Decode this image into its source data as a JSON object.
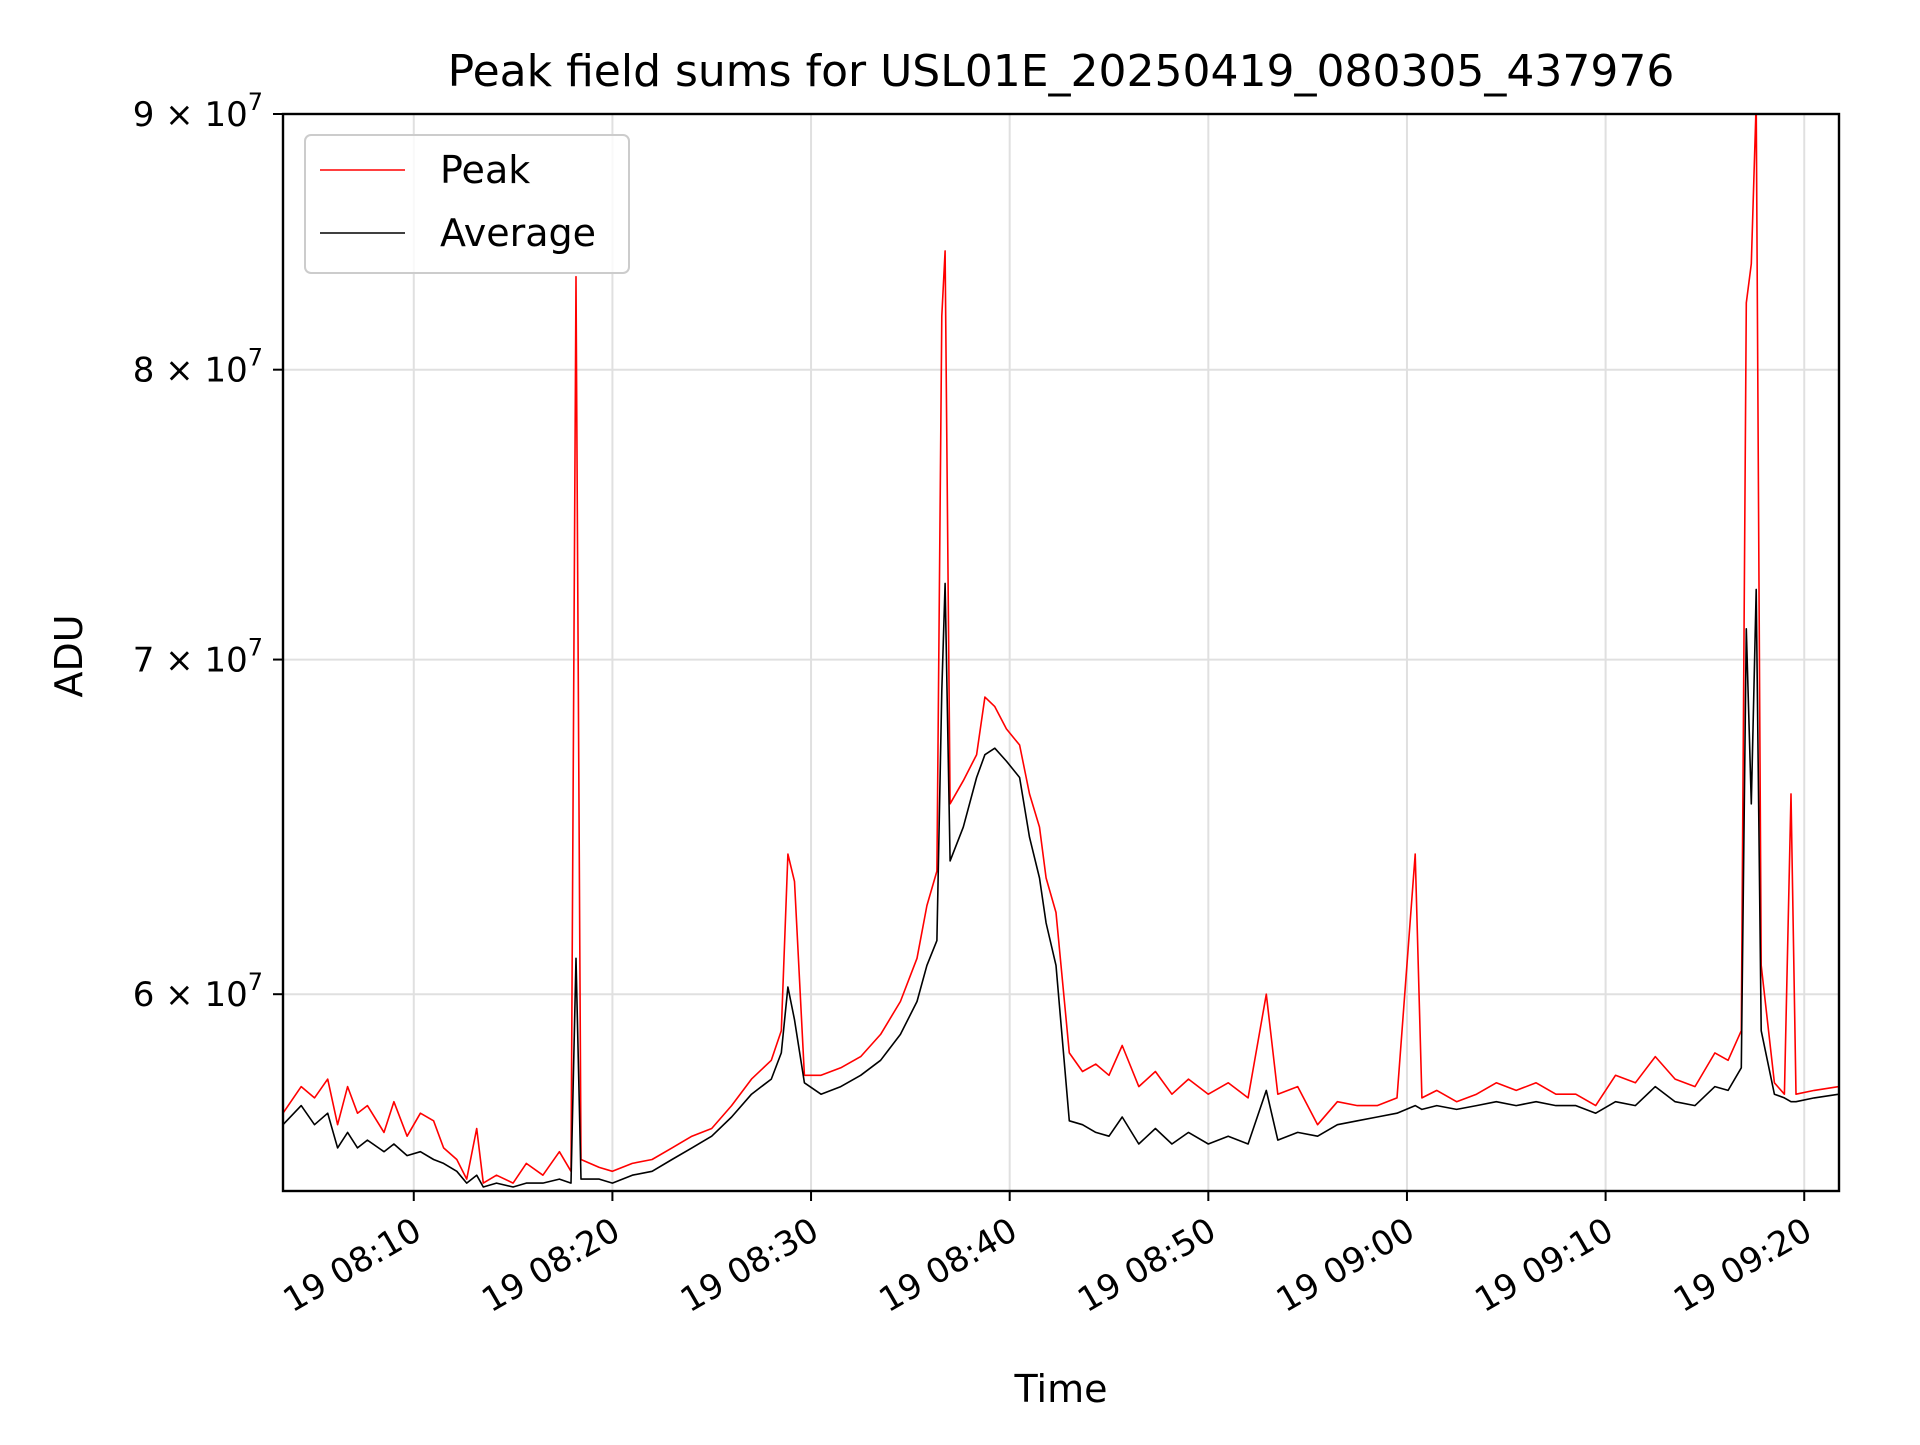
{
  "chart_data": {
    "type": "line",
    "title": "Peak field sums for USL01E_20250419_080305_437976",
    "xlabel": "Time",
    "ylabel": "ADU",
    "x_axis_type": "time",
    "y_scale": "log",
    "xlim": [
      "2025-04-19T08:03:25",
      "2025-04-19T09:21:45"
    ],
    "ylim": [
      54800000,
      90000000
    ],
    "x_ticks": [
      {
        "value": "2025-04-19T08:10:00",
        "label": "19 08:10"
      },
      {
        "value": "2025-04-19T08:20:00",
        "label": "19 08:20"
      },
      {
        "value": "2025-04-19T08:30:00",
        "label": "19 08:30"
      },
      {
        "value": "2025-04-19T08:40:00",
        "label": "19 08:40"
      },
      {
        "value": "2025-04-19T08:50:00",
        "label": "19 08:50"
      },
      {
        "value": "2025-04-19T09:00:00",
        "label": "19 09:00"
      },
      {
        "value": "2025-04-19T09:10:00",
        "label": "19 09:10"
      },
      {
        "value": "2025-04-19T09:20:00",
        "label": "19 09:20"
      }
    ],
    "y_ticks": [
      {
        "value": 60000000,
        "label": "6 × 10",
        "exp": "7"
      },
      {
        "value": 70000000,
        "label": "7 × 10",
        "exp": "7"
      },
      {
        "value": 80000000,
        "label": "8 × 10",
        "exp": "7"
      },
      {
        "value": 90000000,
        "label": "9 × 10",
        "exp": "7"
      }
    ],
    "grid": true,
    "legend_position": "top-left",
    "series": [
      {
        "name": "Peak",
        "color": "#ff0000",
        "points": [
          [
            "2025-04-19T08:03:25",
            56800000
          ],
          [
            "2025-04-19T08:04:20",
            57500000
          ],
          [
            "2025-04-19T08:05:00",
            57200000
          ],
          [
            "2025-04-19T08:05:40",
            57700000
          ],
          [
            "2025-04-19T08:06:10",
            56500000
          ],
          [
            "2025-04-19T08:06:40",
            57500000
          ],
          [
            "2025-04-19T08:07:10",
            56800000
          ],
          [
            "2025-04-19T08:07:40",
            57000000
          ],
          [
            "2025-04-19T08:08:30",
            56300000
          ],
          [
            "2025-04-19T08:09:00",
            57100000
          ],
          [
            "2025-04-19T08:09:40",
            56200000
          ],
          [
            "2025-04-19T08:10:20",
            56800000
          ],
          [
            "2025-04-19T08:11:00",
            56600000
          ],
          [
            "2025-04-19T08:11:30",
            55900000
          ],
          [
            "2025-04-19T08:12:10",
            55600000
          ],
          [
            "2025-04-19T08:12:40",
            55100000
          ],
          [
            "2025-04-19T08:13:10",
            56400000
          ],
          [
            "2025-04-19T08:13:30",
            55000000
          ],
          [
            "2025-04-19T08:14:10",
            55200000
          ],
          [
            "2025-04-19T08:15:00",
            55000000
          ],
          [
            "2025-04-19T08:15:40",
            55500000
          ],
          [
            "2025-04-19T08:16:30",
            55200000
          ],
          [
            "2025-04-19T08:17:20",
            55800000
          ],
          [
            "2025-04-19T08:17:55",
            55300000
          ],
          [
            "2025-04-19T08:18:10",
            83500000
          ],
          [
            "2025-04-19T08:18:25",
            55600000
          ],
          [
            "2025-04-19T08:19:20",
            55400000
          ],
          [
            "2025-04-19T08:20:00",
            55300000
          ],
          [
            "2025-04-19T08:21:00",
            55500000
          ],
          [
            "2025-04-19T08:22:00",
            55600000
          ],
          [
            "2025-04-19T08:23:00",
            55900000
          ],
          [
            "2025-04-19T08:24:00",
            56200000
          ],
          [
            "2025-04-19T08:25:00",
            56400000
          ],
          [
            "2025-04-19T08:26:00",
            57000000
          ],
          [
            "2025-04-19T08:27:00",
            57700000
          ],
          [
            "2025-04-19T08:28:00",
            58200000
          ],
          [
            "2025-04-19T08:28:30",
            59000000
          ],
          [
            "2025-04-19T08:28:50",
            64000000
          ],
          [
            "2025-04-19T08:29:10",
            63200000
          ],
          [
            "2025-04-19T08:29:40",
            57800000
          ],
          [
            "2025-04-19T08:30:30",
            57800000
          ],
          [
            "2025-04-19T08:31:30",
            58000000
          ],
          [
            "2025-04-19T08:32:30",
            58300000
          ],
          [
            "2025-04-19T08:33:30",
            58900000
          ],
          [
            "2025-04-19T08:34:30",
            59800000
          ],
          [
            "2025-04-19T08:35:20",
            61000000
          ],
          [
            "2025-04-19T08:35:50",
            62500000
          ],
          [
            "2025-04-19T08:36:20",
            63500000
          ],
          [
            "2025-04-19T08:36:35",
            82000000
          ],
          [
            "2025-04-19T08:36:45",
            84500000
          ],
          [
            "2025-04-19T08:37:00",
            65500000
          ],
          [
            "2025-04-19T08:37:40",
            66200000
          ],
          [
            "2025-04-19T08:38:20",
            67000000
          ],
          [
            "2025-04-19T08:38:45",
            68800000
          ],
          [
            "2025-04-19T08:39:15",
            68500000
          ],
          [
            "2025-04-19T08:39:50",
            67800000
          ],
          [
            "2025-04-19T08:40:30",
            67300000
          ],
          [
            "2025-04-19T08:41:00",
            65800000
          ],
          [
            "2025-04-19T08:41:30",
            64800000
          ],
          [
            "2025-04-19T08:41:50",
            63300000
          ],
          [
            "2025-04-19T08:42:20",
            62300000
          ],
          [
            "2025-04-19T08:43:00",
            58400000
          ],
          [
            "2025-04-19T08:43:40",
            57900000
          ],
          [
            "2025-04-19T08:44:20",
            58100000
          ],
          [
            "2025-04-19T08:45:00",
            57800000
          ],
          [
            "2025-04-19T08:45:40",
            58600000
          ],
          [
            "2025-04-19T08:46:30",
            57500000
          ],
          [
            "2025-04-19T08:47:20",
            57900000
          ],
          [
            "2025-04-19T08:48:10",
            57300000
          ],
          [
            "2025-04-19T08:49:00",
            57700000
          ],
          [
            "2025-04-19T08:50:00",
            57300000
          ],
          [
            "2025-04-19T08:51:00",
            57600000
          ],
          [
            "2025-04-19T08:52:00",
            57200000
          ],
          [
            "2025-04-19T08:52:55",
            60000000
          ],
          [
            "2025-04-19T08:53:30",
            57300000
          ],
          [
            "2025-04-19T08:54:30",
            57500000
          ],
          [
            "2025-04-19T08:55:30",
            56500000
          ],
          [
            "2025-04-19T08:56:30",
            57100000
          ],
          [
            "2025-04-19T08:57:30",
            57000000
          ],
          [
            "2025-04-19T08:58:30",
            57000000
          ],
          [
            "2025-04-19T08:59:30",
            57200000
          ],
          [
            "2025-04-19T09:00:25",
            64000000
          ],
          [
            "2025-04-19T09:00:45",
            57200000
          ],
          [
            "2025-04-19T09:01:30",
            57400000
          ],
          [
            "2025-04-19T09:02:30",
            57100000
          ],
          [
            "2025-04-19T09:03:30",
            57300000
          ],
          [
            "2025-04-19T09:04:30",
            57600000
          ],
          [
            "2025-04-19T09:05:30",
            57400000
          ],
          [
            "2025-04-19T09:06:30",
            57600000
          ],
          [
            "2025-04-19T09:07:30",
            57300000
          ],
          [
            "2025-04-19T09:08:30",
            57300000
          ],
          [
            "2025-04-19T09:09:30",
            57000000
          ],
          [
            "2025-04-19T09:10:30",
            57800000
          ],
          [
            "2025-04-19T09:11:30",
            57600000
          ],
          [
            "2025-04-19T09:12:30",
            58300000
          ],
          [
            "2025-04-19T09:13:30",
            57700000
          ],
          [
            "2025-04-19T09:14:30",
            57500000
          ],
          [
            "2025-04-19T09:15:30",
            58400000
          ],
          [
            "2025-04-19T09:16:10",
            58200000
          ],
          [
            "2025-04-19T09:16:50",
            59000000
          ],
          [
            "2025-04-19T09:17:05",
            82500000
          ],
          [
            "2025-04-19T09:17:20",
            84000000
          ],
          [
            "2025-04-19T09:17:35",
            90500000
          ],
          [
            "2025-04-19T09:17:50",
            60800000
          ],
          [
            "2025-04-19T09:18:30",
            57600000
          ],
          [
            "2025-04-19T09:19:00",
            57300000
          ],
          [
            "2025-04-19T09:19:20",
            65800000
          ],
          [
            "2025-04-19T09:19:35",
            57300000
          ],
          [
            "2025-04-19T09:20:30",
            57400000
          ],
          [
            "2025-04-19T09:21:45",
            57500000
          ]
        ]
      },
      {
        "name": "Average",
        "color": "#000000",
        "points": [
          [
            "2025-04-19T08:03:25",
            56500000
          ],
          [
            "2025-04-19T08:04:20",
            57000000
          ],
          [
            "2025-04-19T08:05:00",
            56500000
          ],
          [
            "2025-04-19T08:05:40",
            56800000
          ],
          [
            "2025-04-19T08:06:10",
            55900000
          ],
          [
            "2025-04-19T08:06:40",
            56300000
          ],
          [
            "2025-04-19T08:07:10",
            55900000
          ],
          [
            "2025-04-19T08:07:40",
            56100000
          ],
          [
            "2025-04-19T08:08:30",
            55800000
          ],
          [
            "2025-04-19T08:09:00",
            56000000
          ],
          [
            "2025-04-19T08:09:40",
            55700000
          ],
          [
            "2025-04-19T08:10:20",
            55800000
          ],
          [
            "2025-04-19T08:11:00",
            55600000
          ],
          [
            "2025-04-19T08:11:30",
            55500000
          ],
          [
            "2025-04-19T08:12:10",
            55300000
          ],
          [
            "2025-04-19T08:12:40",
            55000000
          ],
          [
            "2025-04-19T08:13:10",
            55200000
          ],
          [
            "2025-04-19T08:13:30",
            54900000
          ],
          [
            "2025-04-19T08:14:10",
            55000000
          ],
          [
            "2025-04-19T08:15:00",
            54900000
          ],
          [
            "2025-04-19T08:15:40",
            55000000
          ],
          [
            "2025-04-19T08:16:30",
            55000000
          ],
          [
            "2025-04-19T08:17:20",
            55100000
          ],
          [
            "2025-04-19T08:17:55",
            55000000
          ],
          [
            "2025-04-19T08:18:10",
            61000000
          ],
          [
            "2025-04-19T08:18:25",
            55100000
          ],
          [
            "2025-04-19T08:19:20",
            55100000
          ],
          [
            "2025-04-19T08:20:00",
            55000000
          ],
          [
            "2025-04-19T08:21:00",
            55200000
          ],
          [
            "2025-04-19T08:22:00",
            55300000
          ],
          [
            "2025-04-19T08:23:00",
            55600000
          ],
          [
            "2025-04-19T08:24:00",
            55900000
          ],
          [
            "2025-04-19T08:25:00",
            56200000
          ],
          [
            "2025-04-19T08:26:00",
            56700000
          ],
          [
            "2025-04-19T08:27:00",
            57300000
          ],
          [
            "2025-04-19T08:28:00",
            57700000
          ],
          [
            "2025-04-19T08:28:30",
            58400000
          ],
          [
            "2025-04-19T08:28:50",
            60200000
          ],
          [
            "2025-04-19T08:29:10",
            59300000
          ],
          [
            "2025-04-19T08:29:40",
            57600000
          ],
          [
            "2025-04-19T08:30:30",
            57300000
          ],
          [
            "2025-04-19T08:31:30",
            57500000
          ],
          [
            "2025-04-19T08:32:30",
            57800000
          ],
          [
            "2025-04-19T08:33:30",
            58200000
          ],
          [
            "2025-04-19T08:34:30",
            58900000
          ],
          [
            "2025-04-19T08:35:20",
            59800000
          ],
          [
            "2025-04-19T08:35:50",
            60800000
          ],
          [
            "2025-04-19T08:36:20",
            61500000
          ],
          [
            "2025-04-19T08:36:35",
            69000000
          ],
          [
            "2025-04-19T08:36:45",
            72500000
          ],
          [
            "2025-04-19T08:37:00",
            63800000
          ],
          [
            "2025-04-19T08:37:40",
            64800000
          ],
          [
            "2025-04-19T08:38:20",
            66300000
          ],
          [
            "2025-04-19T08:38:45",
            67000000
          ],
          [
            "2025-04-19T08:39:15",
            67200000
          ],
          [
            "2025-04-19T08:39:50",
            66800000
          ],
          [
            "2025-04-19T08:40:30",
            66300000
          ],
          [
            "2025-04-19T08:41:00",
            64500000
          ],
          [
            "2025-04-19T08:41:30",
            63300000
          ],
          [
            "2025-04-19T08:41:50",
            62000000
          ],
          [
            "2025-04-19T08:42:20",
            60800000
          ],
          [
            "2025-04-19T08:43:00",
            56600000
          ],
          [
            "2025-04-19T08:43:40",
            56500000
          ],
          [
            "2025-04-19T08:44:20",
            56300000
          ],
          [
            "2025-04-19T08:45:00",
            56200000
          ],
          [
            "2025-04-19T08:45:40",
            56700000
          ],
          [
            "2025-04-19T08:46:30",
            56000000
          ],
          [
            "2025-04-19T08:47:20",
            56400000
          ],
          [
            "2025-04-19T08:48:10",
            56000000
          ],
          [
            "2025-04-19T08:49:00",
            56300000
          ],
          [
            "2025-04-19T08:50:00",
            56000000
          ],
          [
            "2025-04-19T08:51:00",
            56200000
          ],
          [
            "2025-04-19T08:52:00",
            56000000
          ],
          [
            "2025-04-19T08:52:55",
            57400000
          ],
          [
            "2025-04-19T08:53:30",
            56100000
          ],
          [
            "2025-04-19T08:54:30",
            56300000
          ],
          [
            "2025-04-19T08:55:30",
            56200000
          ],
          [
            "2025-04-19T08:56:30",
            56500000
          ],
          [
            "2025-04-19T08:57:30",
            56600000
          ],
          [
            "2025-04-19T08:58:30",
            56700000
          ],
          [
            "2025-04-19T08:59:30",
            56800000
          ],
          [
            "2025-04-19T09:00:25",
            57000000
          ],
          [
            "2025-04-19T09:00:45",
            56900000
          ],
          [
            "2025-04-19T09:01:30",
            57000000
          ],
          [
            "2025-04-19T09:02:30",
            56900000
          ],
          [
            "2025-04-19T09:03:30",
            57000000
          ],
          [
            "2025-04-19T09:04:30",
            57100000
          ],
          [
            "2025-04-19T09:05:30",
            57000000
          ],
          [
            "2025-04-19T09:06:30",
            57100000
          ],
          [
            "2025-04-19T09:07:30",
            57000000
          ],
          [
            "2025-04-19T09:08:30",
            57000000
          ],
          [
            "2025-04-19T09:09:30",
            56800000
          ],
          [
            "2025-04-19T09:10:30",
            57100000
          ],
          [
            "2025-04-19T09:11:30",
            57000000
          ],
          [
            "2025-04-19T09:12:30",
            57500000
          ],
          [
            "2025-04-19T09:13:30",
            57100000
          ],
          [
            "2025-04-19T09:14:30",
            57000000
          ],
          [
            "2025-04-19T09:15:30",
            57500000
          ],
          [
            "2025-04-19T09:16:10",
            57400000
          ],
          [
            "2025-04-19T09:16:50",
            58000000
          ],
          [
            "2025-04-19T09:17:05",
            71000000
          ],
          [
            "2025-04-19T09:17:20",
            65500000
          ],
          [
            "2025-04-19T09:17:35",
            72300000
          ],
          [
            "2025-04-19T09:17:50",
            59000000
          ],
          [
            "2025-04-19T09:18:30",
            57300000
          ],
          [
            "2025-04-19T09:19:00",
            57200000
          ],
          [
            "2025-04-19T09:19:20",
            57100000
          ],
          [
            "2025-04-19T09:19:35",
            57100000
          ],
          [
            "2025-04-19T09:20:30",
            57200000
          ],
          [
            "2025-04-19T09:21:45",
            57300000
          ]
        ]
      }
    ]
  }
}
